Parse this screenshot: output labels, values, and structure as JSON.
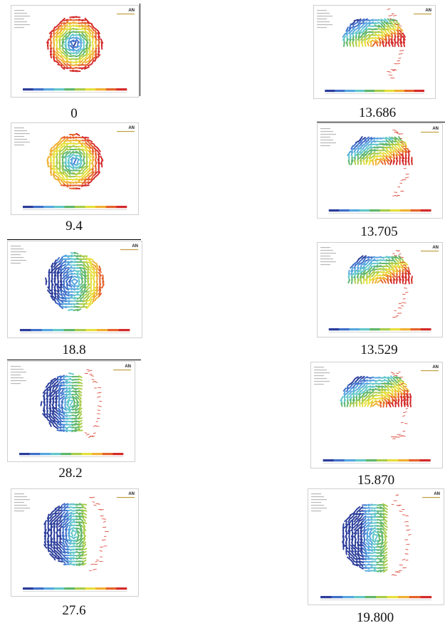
{
  "software_logo": "AN",
  "colors": {
    "scale": [
      "#2a3c9a",
      "#3f6fc9",
      "#56a6df",
      "#63c7c9",
      "#5fb66a",
      "#a8cc49",
      "#e6df3b",
      "#f0b032",
      "#e5622b",
      "#d42a2a"
    ],
    "vector_dark": "#2545a8",
    "vector_mid": "#5fb0dc",
    "vector_hot": "#d63a2a"
  },
  "left_column": [
    {
      "caption": "0"
    },
    {
      "caption": "9.4"
    },
    {
      "caption": "18.8"
    },
    {
      "caption": "28.2"
    },
    {
      "caption": "27.6"
    }
  ],
  "right_column": [
    {
      "caption": "13.686"
    },
    {
      "caption": "13.705"
    },
    {
      "caption": "13.529"
    },
    {
      "caption": "15.870"
    },
    {
      "caption": "19.800"
    }
  ]
}
